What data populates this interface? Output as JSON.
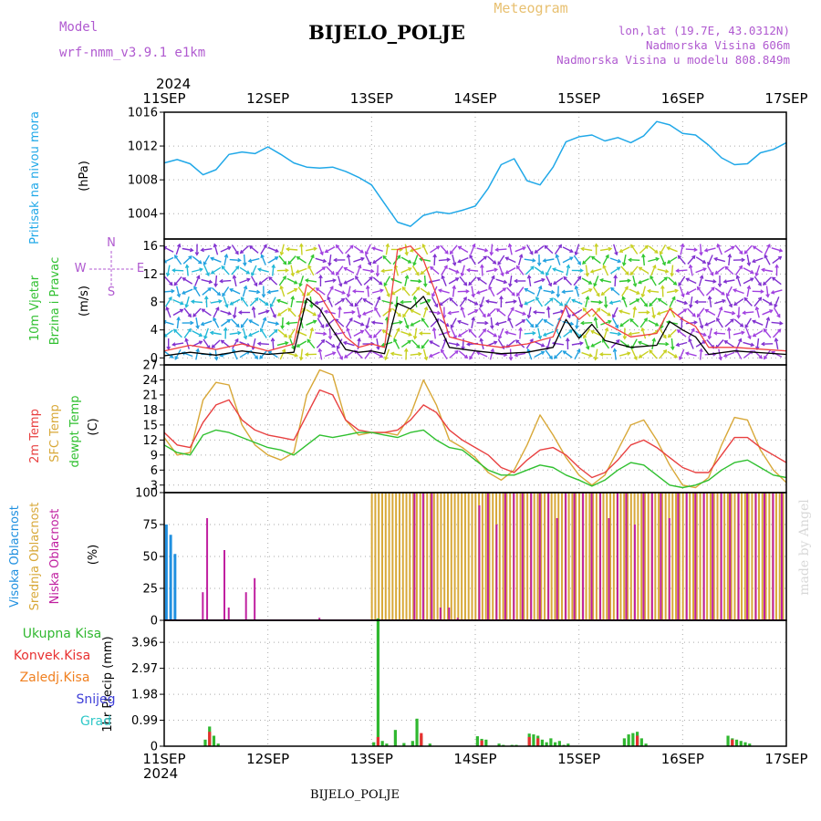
{
  "header": {
    "model_label": "Model",
    "model_name": "wrf-nmm_v3.9.1 e1km",
    "title": "BIJELO_POLJE",
    "meteogram_label": "Meteogram",
    "lonlat": "lon,lat (19.7E, 43.0312N)",
    "elevation": "Nadmorska Visina 606m",
    "model_elevation": "Nadmorska Visina u modelu 808.849m"
  },
  "footer": {
    "station": "BIJELO_POLJE",
    "credit": "made by Angel"
  },
  "colors": {
    "pressure": "#20a8e8",
    "wind_speed": "#000000",
    "gust": "#f04040",
    "t2m": "#e84040",
    "sfc": "#d8a838",
    "dewpt": "#30c030",
    "high_cloud": "#2090e0",
    "mid_cloud": "#d8a838",
    "low_cloud": "#c020a0",
    "total_precip": "#30b830",
    "conv_precip": "#e83030",
    "frozen_precip": "#f08020",
    "snow": "#4040d8",
    "grad": "#30c8c8"
  },
  "chart_data": [
    {
      "type": "line",
      "panel": "pressure",
      "year": "2024",
      "time_labels": [
        "11SEP",
        "12SEP",
        "13SEP",
        "14SEP",
        "15SEP",
        "16SEP",
        "17SEP"
      ],
      "ylabel_main": "Pritisak na nivou mora",
      "ylabel_unit": "(hPa)",
      "ylim": [
        1001,
        1016
      ],
      "yticks": [
        "1004",
        "1008",
        "1012",
        "1016"
      ],
      "x_hours": [
        0,
        3,
        6,
        9,
        12,
        15,
        18,
        21,
        24,
        27,
        30,
        33,
        36,
        39,
        42,
        45,
        48,
        51,
        54,
        57,
        60,
        63,
        66,
        69,
        72,
        75,
        78,
        81,
        84,
        87,
        90,
        93,
        96,
        99,
        102,
        105,
        108,
        111,
        114,
        117,
        120,
        123,
        126,
        129,
        132,
        135,
        138,
        141,
        144
      ],
      "series": [
        {
          "name": "",
          "values": [
            1010.0,
            1010.4,
            1009.9,
            1008.6,
            1009.2,
            1011.0,
            1011.3,
            1011.1,
            1011.9,
            1011.0,
            1010.0,
            1009.5,
            1009.4,
            1009.5,
            1009.0,
            1008.3,
            1007.4,
            1005.2,
            1003.0,
            1002.5,
            1003.8,
            1004.2,
            1004.0,
            1004.4,
            1004.9,
            1007.0,
            1009.8,
            1010.5,
            1007.9,
            1007.4,
            1009.5,
            1012.5,
            1013.1,
            1013.3,
            1012.6,
            1013.0,
            1012.4,
            1013.2,
            1014.9,
            1014.5,
            1013.5,
            1013.3,
            1012.1,
            1010.6,
            1009.8,
            1009.9,
            1011.2,
            1011.6,
            1012.4
          ]
        }
      ]
    },
    {
      "type": "line",
      "panel": "wind",
      "ylabel_main": "10m Vjetar",
      "ylabel_sub": "Brzina i Pravac",
      "ylabel_unit": "(m/s)",
      "compass": {
        "n": "N",
        "s": "S",
        "e": "E",
        "w": "W"
      },
      "ylim": [
        -1,
        17
      ],
      "yticks": [
        "0",
        "4",
        "8",
        "12",
        "16"
      ],
      "x_hours": [
        0,
        6,
        12,
        18,
        24,
        30,
        33,
        36,
        39,
        42,
        45,
        48,
        51,
        54,
        57,
        60,
        63,
        66,
        72,
        78,
        84,
        90,
        93,
        96,
        99,
        102,
        108,
        114,
        117,
        120,
        123,
        126,
        132,
        144
      ],
      "series": [
        {
          "name": "",
          "values": [
            0.3,
            0.8,
            0.4,
            1.0,
            0.5,
            0.8,
            8.5,
            7.0,
            4.0,
            1.2,
            0.8,
            1.0,
            0.6,
            7.8,
            7.0,
            8.8,
            5.5,
            1.5,
            1.0,
            0.6,
            0.8,
            1.5,
            5.5,
            2.8,
            4.8,
            2.5,
            1.5,
            1.8,
            5.2,
            4.0,
            3.0,
            0.5,
            1.0,
            0.5
          ]
        },
        {
          "name": "",
          "values": [
            1.0,
            1.8,
            1.2,
            2.0,
            1.0,
            2.0,
            10.5,
            9.0,
            6.0,
            3.0,
            1.5,
            2.0,
            1.5,
            15.5,
            16.0,
            14.0,
            9.0,
            3.0,
            2.0,
            1.5,
            2.0,
            3.0,
            7.5,
            5.5,
            7.0,
            5.0,
            3.0,
            3.5,
            7.0,
            5.5,
            4.5,
            1.5,
            1.5,
            1.0
          ]
        }
      ]
    },
    {
      "type": "line",
      "panel": "temperature",
      "ylabel_t2m": "2m Temp",
      "ylabel_sfc": "SFC Temp",
      "ylabel_dew": "dewpt Temp",
      "ylabel_unit": "(C)",
      "ylim": [
        1.5,
        27
      ],
      "yticks": [
        "3",
        "6",
        "9",
        "12",
        "15",
        "18",
        "21",
        "24",
        "27"
      ],
      "x_hours": [
        0,
        3,
        6,
        9,
        12,
        15,
        18,
        21,
        24,
        27,
        30,
        33,
        36,
        39,
        42,
        45,
        48,
        51,
        54,
        57,
        60,
        63,
        66,
        69,
        72,
        75,
        78,
        81,
        84,
        87,
        90,
        93,
        96,
        99,
        102,
        105,
        108,
        111,
        114,
        117,
        120,
        123,
        126,
        129,
        132,
        135,
        138,
        141,
        144
      ],
      "series": [
        {
          "name": "",
          "values": [
            13.5,
            11.0,
            10.5,
            15.5,
            19.0,
            20.0,
            16.0,
            14.0,
            13.0,
            12.5,
            12.0,
            17.0,
            22.0,
            21.0,
            16.0,
            14.0,
            13.5,
            13.5,
            14.0,
            16.0,
            19.0,
            17.5,
            14.0,
            12.0,
            10.5,
            9.0,
            6.5,
            5.5,
            8.0,
            10.0,
            10.5,
            9.0,
            6.5,
            4.5,
            5.5,
            8.0,
            11.0,
            12.0,
            10.5,
            8.5,
            6.5,
            5.5,
            5.5,
            9.0,
            12.5,
            12.5,
            10.5,
            9.0,
            7.5
          ]
        },
        {
          "name": "",
          "values": [
            12.5,
            9.0,
            9.5,
            20.0,
            23.5,
            23.0,
            15.0,
            11.0,
            9.0,
            8.0,
            9.5,
            21.0,
            26.0,
            25.0,
            16.0,
            13.0,
            13.5,
            13.5,
            13.0,
            17.0,
            24.0,
            19.0,
            12.0,
            10.5,
            8.5,
            5.5,
            4.0,
            6.0,
            11.0,
            17.0,
            13.0,
            8.5,
            5.0,
            3.0,
            5.0,
            10.0,
            15.0,
            16.0,
            12.0,
            7.0,
            3.0,
            2.5,
            4.5,
            11.0,
            16.5,
            16.0,
            10.0,
            6.0,
            3.5
          ]
        },
        {
          "name": "",
          "values": [
            11.0,
            9.5,
            9.0,
            13.0,
            14.0,
            13.5,
            12.5,
            11.5,
            10.5,
            10.0,
            9.0,
            11.0,
            13.0,
            12.5,
            13.0,
            13.5,
            13.5,
            13.0,
            12.5,
            13.5,
            14.0,
            12.0,
            10.5,
            10.0,
            8.0,
            6.0,
            5.0,
            5.0,
            6.0,
            7.0,
            6.5,
            5.0,
            4.0,
            2.8,
            4.0,
            6.0,
            7.5,
            7.0,
            5.0,
            3.0,
            2.5,
            3.0,
            4.0,
            6.0,
            7.5,
            8.0,
            6.5,
            5.0,
            4.5
          ]
        }
      ]
    },
    {
      "type": "bar",
      "panel": "cloud",
      "ylabel_high": "Visoka Oblacnost",
      "ylabel_mid": "Srednja Oblacnost",
      "ylabel_low": "Niska Oblacnost",
      "ylabel_unit": "(%)",
      "ylim": [
        0,
        100
      ],
      "yticks": [
        "0",
        "25",
        "50",
        "75",
        "100"
      ],
      "series": [
        {
          "name": "",
          "hours": [
            0.5,
            1.5,
            2.5
          ],
          "values": [
            75,
            67,
            52
          ]
        },
        {
          "name": "",
          "hours": [
            48,
            48.8,
            49.6,
            50.4,
            51.2,
            52,
            52.8,
            53.6,
            54.4,
            55.2,
            56,
            56.8,
            57.6,
            58.4,
            59.2,
            60,
            60.8,
            61.6,
            62.4,
            63.2,
            64,
            64.8,
            65.6,
            66.4,
            67.2,
            68,
            68.8,
            69.6,
            70.4,
            71.2,
            72,
            72.8,
            73.6,
            74.4,
            75.2,
            76,
            76.8,
            77.6,
            78.4,
            79.2,
            80,
            80.8,
            81.6,
            82.4,
            83.2,
            84,
            84.8,
            85.6,
            86.4,
            87.2,
            88,
            88.8,
            89.6,
            90.4,
            91.2,
            92,
            92.8,
            93.6,
            94.4,
            95.2,
            96,
            96.8,
            97.6,
            98.4,
            99.2,
            100,
            100.8,
            101.6,
            102.4,
            103.2,
            104,
            104.8,
            105.6,
            106.4,
            107.2,
            108,
            108.8,
            109.6,
            110.4,
            111.2,
            112,
            112.8,
            113.6,
            114.4,
            115.2,
            116,
            116.8,
            117.6,
            118.4,
            119.2,
            120,
            120.8,
            121.6,
            122.4,
            123.2,
            124,
            124.8,
            125.6,
            126.4,
            127.2,
            128,
            128.8,
            129.6,
            130.4,
            131.2,
            132,
            132.8,
            133.6,
            134.4,
            135.2,
            136,
            136.8,
            137.6,
            138.4,
            139.2,
            140,
            140.8,
            141.6,
            142.4,
            143.2
          ],
          "values": [
            100,
            100,
            100,
            100,
            100,
            100,
            100,
            100,
            100,
            100,
            100,
            100,
            100,
            100,
            100,
            100,
            100,
            100,
            100,
            100,
            100,
            100,
            100,
            100,
            100,
            100,
            100,
            100,
            100,
            100,
            100,
            100,
            100,
            100,
            100,
            100,
            100,
            100,
            100,
            100,
            100,
            100,
            100,
            100,
            100,
            100,
            100,
            100,
            100,
            100,
            100,
            100,
            100,
            100,
            100,
            100,
            100,
            100,
            100,
            100,
            100,
            100,
            100,
            100,
            100,
            100,
            100,
            100,
            100,
            100,
            100,
            100,
            100,
            100,
            100,
            100,
            100,
            100,
            100,
            100,
            100,
            100,
            100,
            100,
            100,
            100,
            100,
            100,
            100,
            100,
            100,
            100,
            100,
            100,
            100,
            100,
            100,
            100,
            100,
            100,
            100,
            100,
            100,
            100,
            100,
            100,
            100,
            100,
            100,
            100,
            100,
            100,
            100,
            100,
            100,
            100,
            100,
            100,
            100,
            100
          ]
        },
        {
          "name": "",
          "hours": [
            9,
            10,
            14,
            15,
            19,
            21,
            36,
            58,
            60,
            62,
            64,
            66,
            68,
            73,
            75,
            77,
            79,
            81,
            83,
            85,
            87,
            89,
            91,
            93,
            95,
            97,
            99,
            101,
            103,
            105,
            107,
            109,
            111,
            113,
            115,
            117,
            119,
            121,
            123,
            125,
            127,
            129,
            131,
            133,
            135,
            137,
            139,
            141,
            143
          ],
          "values": [
            22,
            80,
            55,
            10,
            22,
            33,
            2,
            100,
            100,
            100,
            10,
            10,
            2,
            90,
            100,
            75,
            100,
            100,
            100,
            100,
            100,
            100,
            80,
            100,
            100,
            100,
            100,
            100,
            80,
            100,
            100,
            75,
            100,
            100,
            100,
            80,
            100,
            100,
            100,
            100,
            100,
            100,
            100,
            100,
            100,
            100,
            100,
            100,
            100
          ]
        }
      ]
    },
    {
      "type": "bar",
      "panel": "precip",
      "ylabel_main": "1hr Precip (mm)",
      "legend": [
        "Ukupna Kisa",
        "Konvek.Kisa",
        "Zaledj.Kisa",
        "Snijeg",
        "Grad"
      ],
      "ylim": [
        0,
        4.8
      ],
      "yticks": [
        "0",
        "0.99",
        "1.98",
        "2.97",
        "3.96"
      ],
      "series": [
        {
          "name": "Ukupna Kisa",
          "hours": [
            9.5,
            10.5,
            11.5,
            12.5,
            48.5,
            49.5,
            50.5,
            51.5,
            53.5,
            55.5,
            57.5,
            58.5,
            59.5,
            61.5,
            72.5,
            73.5,
            74.5,
            77.5,
            78.5,
            80.5,
            81.5,
            84.5,
            85.5,
            86.5,
            87.5,
            88.5,
            89.5,
            90.5,
            91.5,
            92.5,
            93.5,
            106.5,
            107.5,
            108.5,
            109.5,
            110.5,
            111.5,
            130.5,
            131.5,
            132.5,
            133.5,
            134.5,
            135.5
          ],
          "values": [
            0.25,
            0.75,
            0.4,
            0.1,
            0.15,
            4.87,
            0.2,
            0.1,
            0.62,
            0.12,
            0.2,
            1.05,
            0.4,
            0.1,
            0.38,
            0.28,
            0.25,
            0.1,
            0.05,
            0.05,
            0.05,
            0.48,
            0.45,
            0.4,
            0.25,
            0.15,
            0.3,
            0.15,
            0.2,
            0.05,
            0.1,
            0.3,
            0.45,
            0.5,
            0.55,
            0.3,
            0.1,
            0.4,
            0.3,
            0.25,
            0.2,
            0.15,
            0.1
          ]
        },
        {
          "name": "Konvek.Kisa",
          "hours": [
            10.5,
            49.5,
            59.5,
            73.5,
            84.5,
            86.5,
            109.5,
            131.5
          ],
          "values": [
            0.55,
            0.35,
            0.5,
            0.22,
            0.35,
            0.3,
            0.4,
            0.25
          ]
        }
      ]
    }
  ]
}
